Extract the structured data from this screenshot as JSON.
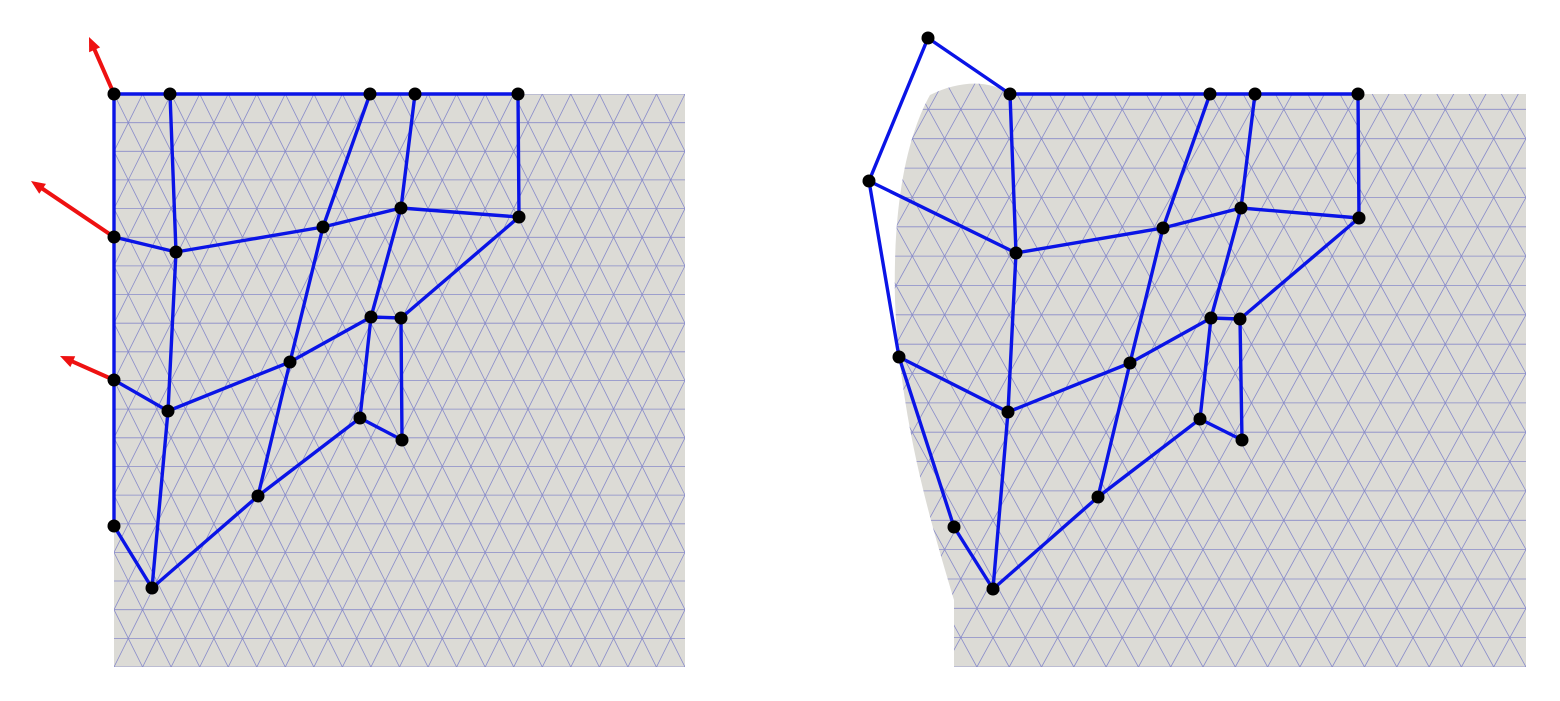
{
  "colors": {
    "background": "#ffffff",
    "domain_fill": "#dcdbd6",
    "mesh_line": "#7a7ec8",
    "truss_edge": "#0a14e6",
    "node": "#000000",
    "force_arrow": "#ee1111"
  },
  "icons": {
    "node": "filled-black-circle",
    "force": "red-arrow"
  }
}
